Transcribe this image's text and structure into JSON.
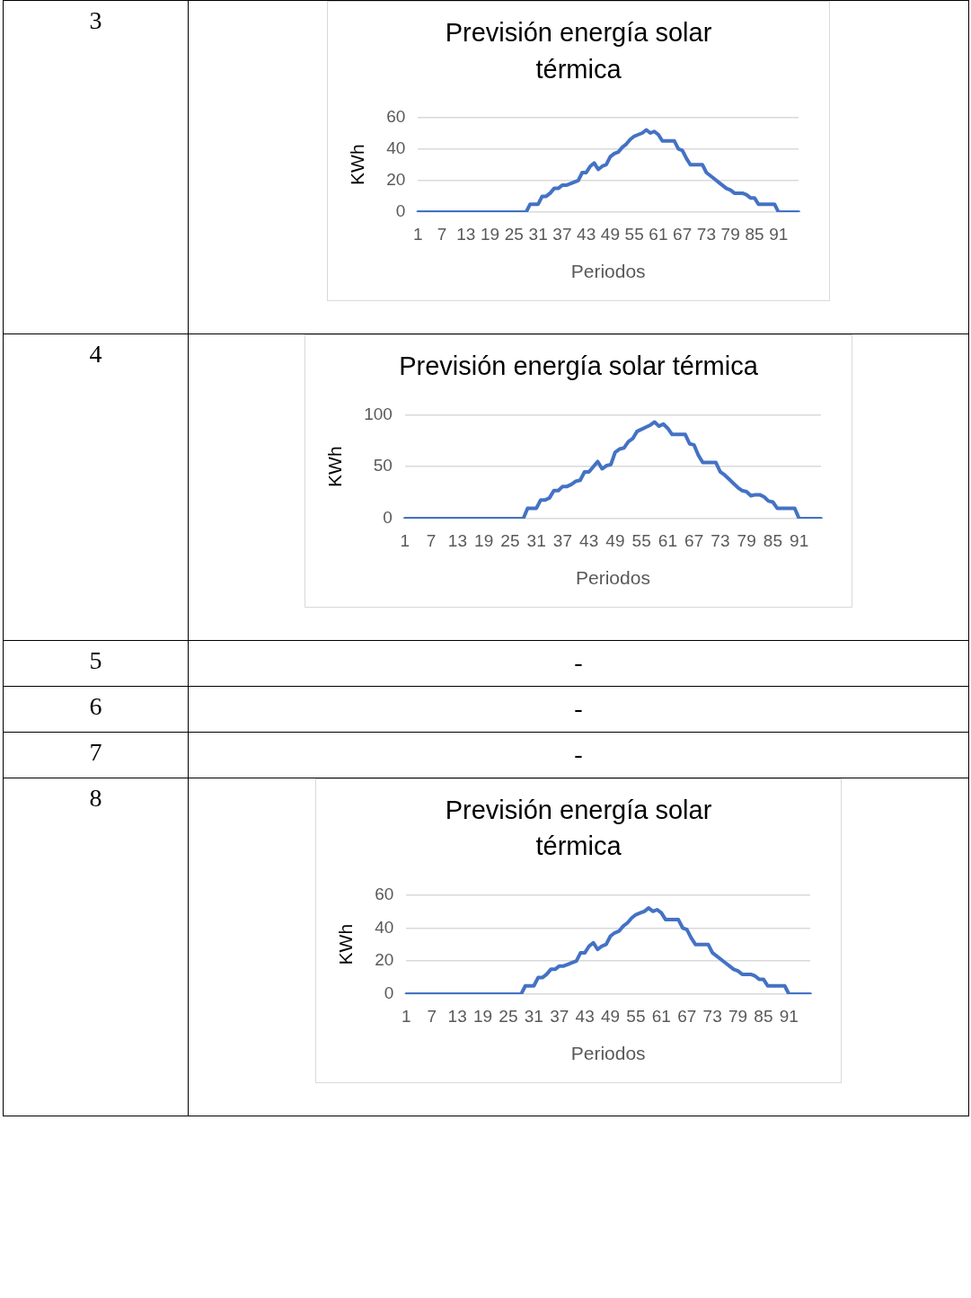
{
  "chart_data": [
    {
      "type": "line",
      "title": "Previsión energía solar térmica",
      "xlabel": "Periodos",
      "ylabel": "KWh",
      "annotations": [
        "3"
      ],
      "ylim": [
        0,
        60
      ],
      "yticks": [
        0,
        20,
        40,
        60
      ],
      "grid": "y",
      "categories": [
        "1",
        null,
        null,
        null,
        null,
        null,
        "7",
        null,
        null,
        null,
        null,
        null,
        "13",
        null,
        null,
        null,
        null,
        null,
        "19",
        null,
        null,
        null,
        null,
        null,
        "25",
        null,
        null,
        null,
        null,
        null,
        "31",
        null,
        null,
        null,
        null,
        null,
        "37",
        null,
        null,
        null,
        null,
        null,
        "43",
        null,
        null,
        null,
        null,
        null,
        "49",
        null,
        null,
        null,
        null,
        null,
        "55",
        null,
        null,
        null,
        null,
        null,
        "61",
        null,
        null,
        null,
        null,
        null,
        "67",
        null,
        null,
        null,
        null,
        null,
        "73",
        null,
        null,
        null,
        null,
        null,
        "79",
        null,
        null,
        null,
        null,
        null,
        "85",
        null,
        null,
        null,
        null,
        null,
        "91",
        null,
        null,
        null,
        null,
        null
      ],
      "series": [
        {
          "color": "#4472c4",
          "values": [
            0,
            0,
            0,
            0,
            0,
            0,
            0,
            0,
            0,
            0,
            0,
            0,
            0,
            0,
            0,
            0,
            0,
            0,
            0,
            0,
            0,
            0,
            0,
            0,
            0,
            0,
            0,
            0,
            5,
            5,
            5,
            10,
            10,
            12,
            15,
            15,
            17,
            17,
            18,
            19,
            20,
            25,
            25,
            29,
            31,
            27,
            29,
            30,
            35,
            37,
            38,
            41,
            43,
            46,
            48,
            49,
            50,
            52,
            50,
            51,
            49,
            45,
            45,
            45,
            45,
            40,
            39,
            34,
            30,
            30,
            30,
            30,
            25,
            23,
            21,
            19,
            17,
            15,
            14,
            12,
            12,
            12,
            11,
            9,
            9,
            5,
            5,
            5,
            5,
            5,
            0,
            0,
            0,
            0,
            0,
            0
          ]
        }
      ]
    },
    {
      "type": "line",
      "title": "Previsión energía solar térmica",
      "xlabel": "Periodos",
      "ylabel": "KWh",
      "annotations": [
        "4",
        "5",
        "-",
        "6",
        "-",
        "7",
        "-"
      ],
      "ylim": [
        0,
        100
      ],
      "yticks": [
        0,
        50,
        100
      ],
      "grid": "y",
      "categories": [
        "1",
        null,
        null,
        null,
        null,
        null,
        "7",
        null,
        null,
        null,
        null,
        null,
        "13",
        null,
        null,
        null,
        null,
        null,
        "19",
        null,
        null,
        null,
        null,
        null,
        "25",
        null,
        null,
        null,
        null,
        null,
        "31",
        null,
        null,
        null,
        null,
        null,
        "37",
        null,
        null,
        null,
        null,
        null,
        "43",
        null,
        null,
        null,
        null,
        null,
        "49",
        null,
        null,
        null,
        null,
        null,
        "55",
        null,
        null,
        null,
        null,
        null,
        "61",
        null,
        null,
        null,
        null,
        null,
        "67",
        null,
        null,
        null,
        null,
        null,
        "73",
        null,
        null,
        null,
        null,
        null,
        "79",
        null,
        null,
        null,
        null,
        null,
        "85",
        null,
        null,
        null,
        null,
        null,
        "91",
        null,
        null,
        null,
        null,
        null
      ],
      "series": [
        {
          "color": "#4472c4",
          "values": [
            0,
            0,
            0,
            0,
            0,
            0,
            0,
            0,
            0,
            0,
            0,
            0,
            0,
            0,
            0,
            0,
            0,
            0,
            0,
            0,
            0,
            0,
            0,
            0,
            0,
            0,
            0,
            0,
            10,
            10,
            10,
            18,
            18,
            20,
            27,
            27,
            31,
            31,
            33,
            36,
            37,
            45,
            45,
            50,
            55,
            48,
            51,
            52,
            64,
            67,
            68,
            74,
            77,
            84,
            86,
            88,
            90,
            93,
            89,
            91,
            87,
            81,
            81,
            81,
            81,
            72,
            71,
            61,
            54,
            54,
            54,
            54,
            45,
            42,
            38,
            34,
            30,
            27,
            26,
            22,
            23,
            23,
            21,
            17,
            16,
            10,
            10,
            10,
            10,
            10,
            0,
            0,
            0,
            0,
            0,
            0
          ]
        }
      ]
    },
    {
      "type": "line",
      "title": "Previsión energía solar térmica",
      "xlabel": "Periodos",
      "ylabel": "KWh",
      "annotations": [
        "8"
      ],
      "ylim": [
        0,
        60
      ],
      "yticks": [
        0,
        20,
        40,
        60
      ],
      "grid": "y",
      "categories": [
        "1",
        null,
        null,
        null,
        null,
        null,
        "7",
        null,
        null,
        null,
        null,
        null,
        "13",
        null,
        null,
        null,
        null,
        null,
        "19",
        null,
        null,
        null,
        null,
        null,
        "25",
        null,
        null,
        null,
        null,
        null,
        "31",
        null,
        null,
        null,
        null,
        null,
        "37",
        null,
        null,
        null,
        null,
        null,
        "43",
        null,
        null,
        null,
        null,
        null,
        "49",
        null,
        null,
        null,
        null,
        null,
        "55",
        null,
        null,
        null,
        null,
        null,
        "61",
        null,
        null,
        null,
        null,
        null,
        "67",
        null,
        null,
        null,
        null,
        null,
        "73",
        null,
        null,
        null,
        null,
        null,
        "79",
        null,
        null,
        null,
        null,
        null,
        "85",
        null,
        null,
        null,
        null,
        null,
        "91",
        null,
        null,
        null,
        null,
        null
      ],
      "series": [
        {
          "color": "#4472c4",
          "values": [
            0,
            0,
            0,
            0,
            0,
            0,
            0,
            0,
            0,
            0,
            0,
            0,
            0,
            0,
            0,
            0,
            0,
            0,
            0,
            0,
            0,
            0,
            0,
            0,
            0,
            0,
            0,
            0,
            5,
            5,
            5,
            10,
            10,
            12,
            15,
            15,
            17,
            17,
            18,
            19,
            20,
            25,
            25,
            29,
            31,
            27,
            29,
            30,
            35,
            37,
            38,
            41,
            43,
            46,
            48,
            49,
            50,
            52,
            50,
            51,
            49,
            45,
            45,
            45,
            45,
            40,
            39,
            34,
            30,
            30,
            30,
            30,
            25,
            23,
            21,
            19,
            17,
            15,
            14,
            12,
            12,
            12,
            11,
            9,
            9,
            5,
            5,
            5,
            5,
            5,
            0,
            0,
            0,
            0,
            0,
            0
          ]
        }
      ]
    }
  ]
}
